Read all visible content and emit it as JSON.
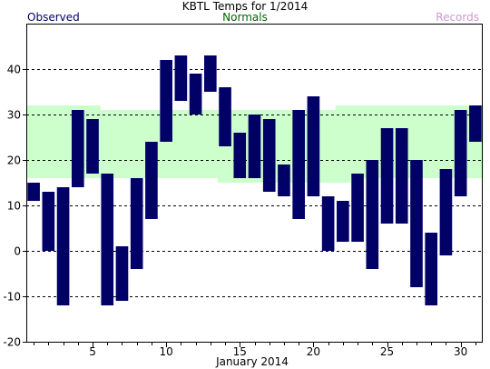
{
  "chart_data": {
    "type": "bar",
    "title": "KBTL Temps for 1/2014",
    "xlabel": "January 2014",
    "ylabel": "",
    "legend": {
      "observed": "Observed",
      "normals": "Normals",
      "records": "Records"
    },
    "colors": {
      "observed": "#000066",
      "normals_fill": "#ccffcc",
      "normals_text": "#006600",
      "records_text": "#cc99cc",
      "grid": "#000000",
      "axis": "#000000"
    },
    "xlim": [
      0.5,
      31.5
    ],
    "ylim": [
      -20,
      50
    ],
    "x_ticks": [
      5,
      10,
      15,
      20,
      25,
      30
    ],
    "y_ticks": [
      -20,
      -10,
      0,
      10,
      20,
      30,
      40
    ],
    "grid": "horizontal-dashed",
    "days": [
      1,
      2,
      3,
      4,
      5,
      6,
      7,
      8,
      9,
      10,
      11,
      12,
      13,
      14,
      15,
      16,
      17,
      18,
      19,
      20,
      21,
      22,
      23,
      24,
      25,
      26,
      27,
      28,
      29,
      30,
      31
    ],
    "observed_high": [
      15,
      13,
      14,
      31,
      29,
      17,
      1,
      16,
      24,
      42,
      43,
      39,
      43,
      36,
      26,
      30,
      29,
      19,
      31,
      34,
      12,
      11,
      17,
      20,
      27,
      27,
      20,
      4,
      18,
      31,
      32
    ],
    "observed_low": [
      11,
      0,
      -12,
      14,
      17,
      -12,
      -11,
      -4,
      7,
      24,
      33,
      30,
      35,
      23,
      16,
      16,
      13,
      12,
      7,
      12,
      0,
      2,
      2,
      -4,
      6,
      6,
      -8,
      -12,
      -1,
      12,
      24
    ],
    "normal_high": [
      32,
      32,
      32,
      32,
      32,
      31,
      31,
      31,
      31,
      31,
      31,
      31,
      31,
      31,
      31,
      31,
      31,
      31,
      31,
      31,
      31,
      32,
      32,
      32,
      32,
      32,
      32,
      32,
      32,
      32,
      32
    ],
    "normal_low": [
      16,
      16,
      16,
      16,
      16,
      16,
      16,
      16,
      16,
      16,
      16,
      16,
      16,
      15,
      15,
      15,
      15,
      15,
      15,
      15,
      15,
      15,
      16,
      16,
      16,
      16,
      16,
      16,
      16,
      16,
      16
    ]
  }
}
